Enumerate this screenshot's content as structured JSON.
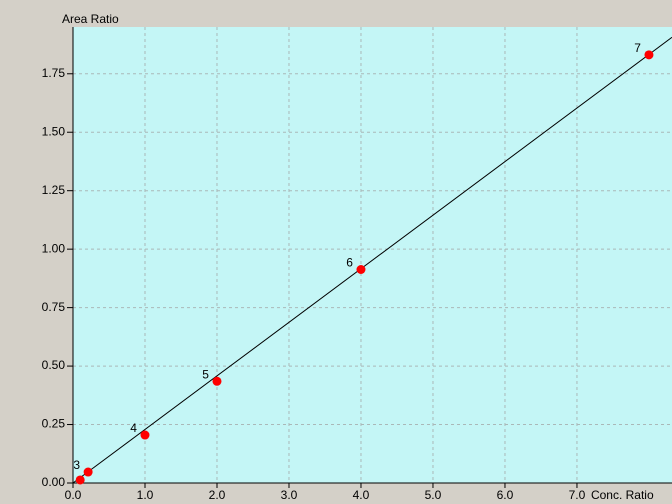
{
  "chart_data": {
    "type": "scatter",
    "y_label": "Area Ratio",
    "x_label": "Conc. Ratio",
    "xlim": [
      0,
      8.32
    ],
    "ylim": [
      0,
      1.95
    ],
    "xticks": [
      {
        "value": 0,
        "label": "0.0"
      },
      {
        "value": 1,
        "label": "1.0"
      },
      {
        "value": 2,
        "label": "2.0"
      },
      {
        "value": 3,
        "label": "3.0"
      },
      {
        "value": 4,
        "label": "4.0"
      },
      {
        "value": 5,
        "label": "5.0"
      },
      {
        "value": 6,
        "label": "6.0"
      },
      {
        "value": 7,
        "label": "7.0"
      }
    ],
    "yticks": [
      {
        "value": 0,
        "label": "0.00"
      },
      {
        "value": 0.25,
        "label": "0.25"
      },
      {
        "value": 0.5,
        "label": "0.50"
      },
      {
        "value": 0.75,
        "label": "0.75"
      },
      {
        "value": 1,
        "label": "1.00"
      },
      {
        "value": 1.25,
        "label": "1.25"
      },
      {
        "value": 1.5,
        "label": "1.50"
      },
      {
        "value": 1.75,
        "label": "1.75"
      }
    ],
    "grid": true,
    "background": "#c4f6f6",
    "point_color": "#ff0000",
    "line_color": "#000000",
    "x": [
      0.1,
      0.21,
      1.0,
      2.0,
      4.0,
      8.0
    ],
    "values": [
      0.013,
      0.047,
      0.205,
      0.435,
      0.913,
      1.831
    ],
    "point_labels": [
      null,
      "3",
      "4",
      "5",
      "6",
      "7"
    ],
    "fit": {
      "x": [
        0,
        8.32
      ],
      "y": [
        0,
        1.906
      ]
    }
  }
}
